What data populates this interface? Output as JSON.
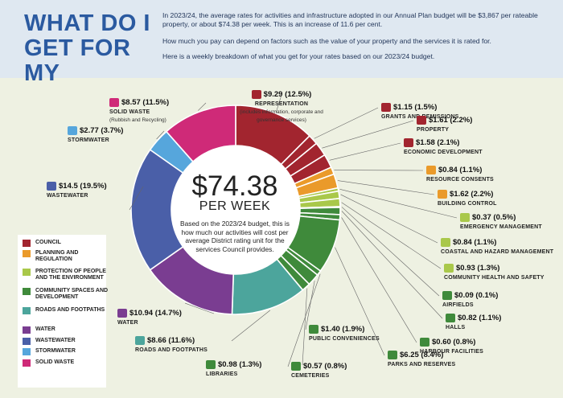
{
  "header": {
    "title": "WHAT DO I GET FOR MY RATES?",
    "paragraphs": [
      "In 2023/24, the average rates for activities and infrastructure adopted in our Annual Plan budget will be $3,867 per rateable property, or about $74.38 per week. This is an increase of 11.6 per cent.",
      "How much you pay can depend on factors such as the value of your property and the services it is rated for.",
      "Here is a weekly breakdown of what you get for your rates based on our 2023/24 budget."
    ]
  },
  "center": {
    "amount": "$74.38",
    "per": "PER WEEK",
    "text": "Based on the 2023/24 budget, this is  how much our activities will cost per average District rating unit for the services Council provides."
  },
  "legend": [
    {
      "label": "COUNCIL",
      "color": "#a2252f"
    },
    {
      "label": "PLANNING AND REGULATION",
      "color": "#ea9a2a"
    },
    {
      "label": "PROTECTION OF PEOPLE AND THE ENVIRONMENT",
      "color": "#a9c84a"
    },
    {
      "label": "COMMUNITY SPACES AND DEVELOPMENT",
      "color": "#3f8a3b"
    },
    {
      "label": "ROADS AND FOOTPATHS",
      "color": "#4ca59c"
    },
    {
      "label": "WATER",
      "color": "#7a3d91"
    },
    {
      "label": "WASTEWATER",
      "color": "#4a5fa8"
    },
    {
      "label": "STORMWATER",
      "color": "#56a6dc"
    },
    {
      "label": "SOLID WASTE",
      "color": "#cf2a78"
    }
  ],
  "chart_data": {
    "type": "pie",
    "total": "$74.38",
    "slices": [
      {
        "name": "REPRESENTATION",
        "sub": "(includes information, corporate and governance services)",
        "amount": 9.29,
        "display": "$9.29 (12.5%)",
        "group": "COUNCIL",
        "icon": "people-icon"
      },
      {
        "name": "GRANTS AND REMISSIONS",
        "sub": "",
        "amount": 1.15,
        "display": "$1.15 (1.5%)",
        "group": "COUNCIL",
        "icon": "handshake-icon"
      },
      {
        "name": "PROPERTY",
        "sub": "",
        "amount": 1.61,
        "display": "$1.61 (2.2%)",
        "group": "COUNCIL",
        "icon": "house-icon"
      },
      {
        "name": "ECONOMIC DEVELOPMENT",
        "sub": "",
        "amount": 1.58,
        "display": "$1.58 (2.1%)",
        "group": "COUNCIL",
        "icon": "dollar-cycle-icon"
      },
      {
        "name": "RESOURCE CONSENTS",
        "sub": "",
        "amount": 0.84,
        "display": "$0.84 (1.1%)",
        "group": "PLANNING AND REGULATION",
        "icon": "clipboard-icon"
      },
      {
        "name": "BUILDING CONTROL",
        "sub": "",
        "amount": 1.62,
        "display": "$1.62 (2.2%)",
        "group": "PLANNING AND REGULATION",
        "icon": "building-icon"
      },
      {
        "name": "EMERGENCY MANAGEMENT",
        "sub": "",
        "amount": 0.37,
        "display": "$0.37 (0.5%)",
        "group": "PROTECTION OF PEOPLE AND THE ENVIRONMENT",
        "icon": "warning-icon"
      },
      {
        "name": "COASTAL AND HAZARD MANAGEMENT",
        "sub": "",
        "amount": 0.84,
        "display": "$0.84 (1.1%)",
        "group": "PROTECTION OF PEOPLE AND THE ENVIRONMENT",
        "icon": "wave-icon"
      },
      {
        "name": "COMMUNITY HEALTH AND SAFETY",
        "sub": "",
        "amount": 0.93,
        "display": "$0.93 (1.3%)",
        "group": "PROTECTION OF PEOPLE AND THE ENVIRONMENT",
        "icon": "heart-icon"
      },
      {
        "name": "AIRFIELDS",
        "sub": "",
        "amount": 0.09,
        "display": "$0.09 (0.1%)",
        "group": "COMMUNITY SPACES AND DEVELOPMENT",
        "icon": "plane-icon"
      },
      {
        "name": "HALLS",
        "sub": "",
        "amount": 0.82,
        "display": "$0.82 (1.1%)",
        "group": "COMMUNITY SPACES AND DEVELOPMENT",
        "icon": "hall-icon"
      },
      {
        "name": "HARBOUR FACILITIES",
        "sub": "",
        "amount": 0.6,
        "display": "$0.60 (0.8%)",
        "group": "COMMUNITY SPACES AND DEVELOPMENT",
        "icon": "boat-icon"
      },
      {
        "name": "PARKS AND RESERVES",
        "sub": "",
        "amount": 6.25,
        "display": "$6.25 (8.4%)",
        "group": "COMMUNITY SPACES AND DEVELOPMENT",
        "icon": "tree-icon"
      },
      {
        "name": "CEMETERIES",
        "sub": "",
        "amount": 0.57,
        "display": "$0.57 (0.8%)",
        "group": "COMMUNITY SPACES AND DEVELOPMENT",
        "icon": "headstone-icon"
      },
      {
        "name": "PUBLIC CONVENIENCES",
        "sub": "",
        "amount": 1.4,
        "display": "$1.40 (1.9%)",
        "group": "COMMUNITY SPACES AND DEVELOPMENT",
        "icon": "toilet-icon"
      },
      {
        "name": "LIBRARIES",
        "sub": "",
        "amount": 0.98,
        "display": "$0.98 (1.3%)",
        "group": "COMMUNITY SPACES AND DEVELOPMENT",
        "icon": "books-icon"
      },
      {
        "name": "ROADS AND FOOTPATHS",
        "sub": "",
        "amount": 8.66,
        "display": "$8.66 (11.6%)",
        "group": "ROADS AND FOOTPATHS",
        "icon": "car-icon"
      },
      {
        "name": "WATER",
        "sub": "",
        "amount": 10.94,
        "display": "$10.94 (14.7%)",
        "group": "WATER",
        "icon": "tap-icon"
      },
      {
        "name": "WASTEWATER",
        "sub": "",
        "amount": 14.5,
        "display": "$14.5 (19.5%)",
        "group": "WASTEWATER",
        "icon": "drain-icon"
      },
      {
        "name": "STORMWATER",
        "sub": "",
        "amount": 2.77,
        "display": "$2.77 (3.7%)",
        "group": "STORMWATER",
        "icon": "stormwater-icon"
      },
      {
        "name": "SOLID WASTE",
        "sub": "(Rubbish and Recycling)",
        "amount": 8.57,
        "display": "$8.57 (11.5%)",
        "group": "SOLID WASTE",
        "icon": "bin-icon"
      }
    ]
  }
}
